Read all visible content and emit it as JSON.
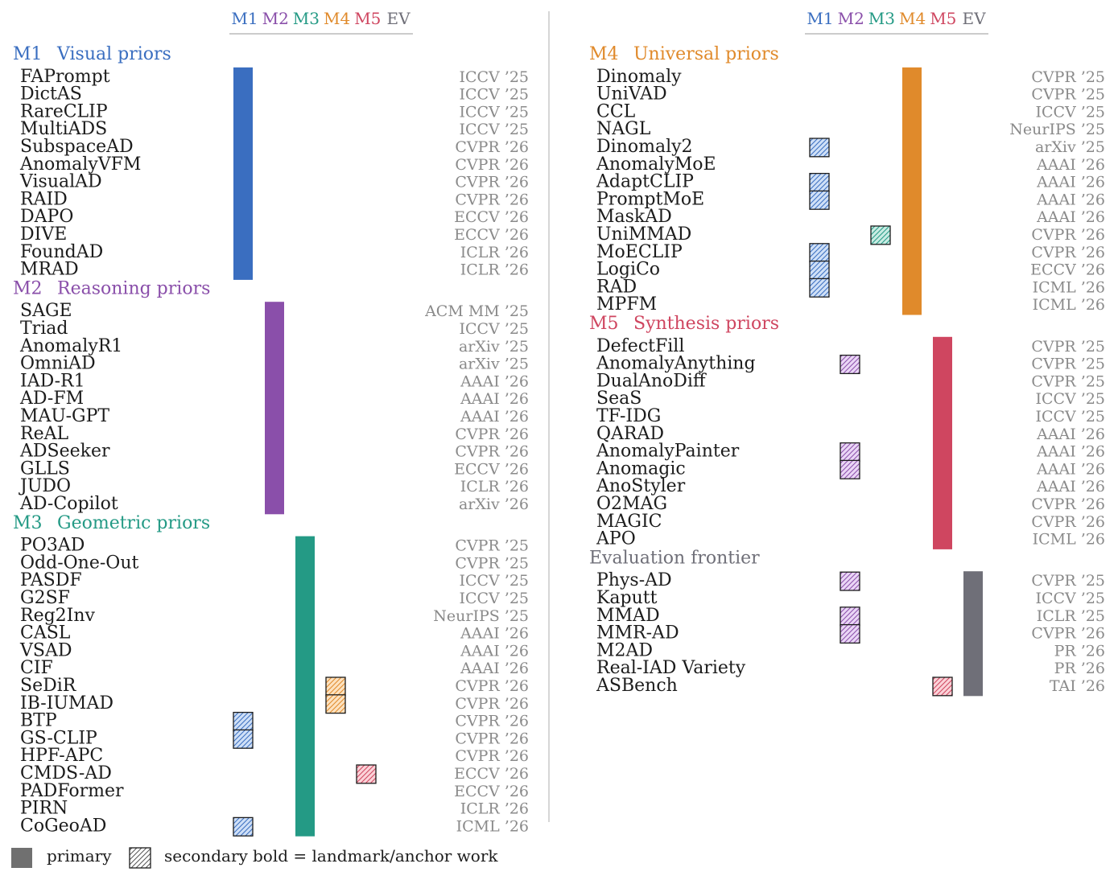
{
  "colors": {
    "M1": "#3a6ec0",
    "M2": "#8a4faa",
    "M3": "#249a85",
    "M4": "#e08a2b",
    "M5": "#cf4660",
    "EV": "#6f6f78",
    "hatch_fill": {
      "M1": "#cfe0f7",
      "M2": "#ead6f6",
      "M3": "#c9ece3",
      "M4": "#fde2c0",
      "M5": "#fbd2d8"
    },
    "venue": "#8a8a8a",
    "divider": "#c8c8c8"
  },
  "header_cols": [
    "M1",
    "M2",
    "M3",
    "M4",
    "M5",
    "EV"
  ],
  "columns": [
    {
      "sections": [
        {
          "code": "M1",
          "title": "Visual priors",
          "items": [
            {
              "name": "FAPrompt",
              "venue": "ICCV ’25",
              "secondary": []
            },
            {
              "name": "DictAS",
              "venue": "ICCV ’25",
              "secondary": []
            },
            {
              "name": "RareCLIP",
              "venue": "ICCV ’25",
              "secondary": []
            },
            {
              "name": "MultiADS",
              "venue": "ICCV ’25",
              "secondary": []
            },
            {
              "name": "SubspaceAD",
              "venue": "CVPR ’26",
              "secondary": []
            },
            {
              "name": "AnomalyVFM",
              "venue": "CVPR ’26",
              "secondary": []
            },
            {
              "name": "VisualAD",
              "venue": "CVPR ’26",
              "secondary": []
            },
            {
              "name": "RAID",
              "venue": "CVPR ’26",
              "secondary": []
            },
            {
              "name": "DAPO",
              "venue": "ECCV ’26",
              "secondary": []
            },
            {
              "name": "DIVE",
              "venue": "ECCV ’26",
              "secondary": []
            },
            {
              "name": "FoundAD",
              "venue": "ICLR ’26",
              "secondary": []
            },
            {
              "name": "MRAD",
              "venue": "ICLR ’26",
              "secondary": []
            }
          ]
        },
        {
          "code": "M2",
          "title": "Reasoning priors",
          "items": [
            {
              "name": "SAGE",
              "venue": "ACM MM ’25",
              "secondary": []
            },
            {
              "name": "Triad",
              "venue": "ICCV ’25",
              "secondary": []
            },
            {
              "name": "AnomalyR1",
              "venue": "arXiv ’25",
              "secondary": []
            },
            {
              "name": "OmniAD",
              "venue": "arXiv ’25",
              "secondary": []
            },
            {
              "name": "IAD-R1",
              "venue": "AAAI ’26",
              "secondary": []
            },
            {
              "name": "AD-FM",
              "venue": "AAAI ’26",
              "secondary": []
            },
            {
              "name": "MAU-GPT",
              "venue": "AAAI ’26",
              "secondary": []
            },
            {
              "name": "ReAL",
              "venue": "CVPR ’26",
              "secondary": []
            },
            {
              "name": "ADSeeker",
              "venue": "CVPR ’26",
              "secondary": []
            },
            {
              "name": "GLLS",
              "venue": "ECCV ’26",
              "secondary": []
            },
            {
              "name": "JUDO",
              "venue": "ICLR ’26",
              "secondary": []
            },
            {
              "name": "AD-Copilot",
              "venue": "arXiv ’26",
              "secondary": []
            }
          ]
        },
        {
          "code": "M3",
          "title": "Geometric priors",
          "items": [
            {
              "name": "PO3AD",
              "venue": "CVPR ’25",
              "secondary": []
            },
            {
              "name": "Odd-One-Out",
              "venue": "CVPR ’25",
              "secondary": []
            },
            {
              "name": "PASDF",
              "venue": "ICCV ’25",
              "secondary": []
            },
            {
              "name": "G2SF",
              "venue": "ICCV ’25",
              "secondary": []
            },
            {
              "name": "Reg2Inv",
              "venue": "NeurIPS ’25",
              "secondary": []
            },
            {
              "name": "CASL",
              "venue": "AAAI ’26",
              "secondary": []
            },
            {
              "name": "VSAD",
              "venue": "AAAI ’26",
              "secondary": []
            },
            {
              "name": "CIF",
              "venue": "AAAI ’26",
              "secondary": []
            },
            {
              "name": "SeDiR",
              "venue": "CVPR ’26",
              "secondary": [
                "M4"
              ]
            },
            {
              "name": "IB-IUMAD",
              "venue": "CVPR ’26",
              "secondary": [
                "M4"
              ]
            },
            {
              "name": "BTP",
              "venue": "CVPR ’26",
              "secondary": [
                "M1"
              ]
            },
            {
              "name": "GS-CLIP",
              "venue": "CVPR ’26",
              "secondary": [
                "M1"
              ]
            },
            {
              "name": "HPF-APC",
              "venue": "CVPR ’26",
              "secondary": []
            },
            {
              "name": "CMDS-AD",
              "venue": "ECCV ’26",
              "secondary": [
                "M5"
              ]
            },
            {
              "name": "PADFormer",
              "venue": "ECCV ’26",
              "secondary": []
            },
            {
              "name": "PIRN",
              "venue": "ICLR ’26",
              "secondary": []
            },
            {
              "name": "CoGeoAD",
              "venue": "ICML ’26",
              "secondary": [
                "M1"
              ]
            }
          ]
        }
      ]
    },
    {
      "sections": [
        {
          "code": "M4",
          "title": "Universal priors",
          "items": [
            {
              "name": "Dinomaly",
              "venue": "CVPR ’25",
              "secondary": []
            },
            {
              "name": "UniVAD",
              "venue": "CVPR ’25",
              "secondary": []
            },
            {
              "name": "CCL",
              "venue": "ICCV ’25",
              "secondary": []
            },
            {
              "name": "NAGL",
              "venue": "NeurIPS ’25",
              "secondary": []
            },
            {
              "name": "Dinomaly2",
              "venue": "arXiv ’25",
              "secondary": [
                "M1"
              ]
            },
            {
              "name": "AnomalyMoE",
              "venue": "AAAI ’26",
              "secondary": []
            },
            {
              "name": "AdaptCLIP",
              "venue": "AAAI ’26",
              "secondary": [
                "M1"
              ]
            },
            {
              "name": "PromptMoE",
              "venue": "AAAI ’26",
              "secondary": [
                "M1"
              ]
            },
            {
              "name": "MaskAD",
              "venue": "AAAI ’26",
              "secondary": []
            },
            {
              "name": "UniMMAD",
              "venue": "CVPR ’26",
              "secondary": [
                "M3"
              ]
            },
            {
              "name": "MoECLIP",
              "venue": "CVPR ’26",
              "secondary": [
                "M1"
              ]
            },
            {
              "name": "LogiCo",
              "venue": "ECCV ’26",
              "secondary": [
                "M1"
              ]
            },
            {
              "name": "RAD",
              "venue": "ICML ’26",
              "secondary": [
                "M1"
              ]
            },
            {
              "name": "MPFM",
              "venue": "ICML ’26",
              "secondary": []
            }
          ]
        },
        {
          "code": "M5",
          "title": "Synthesis priors",
          "items": [
            {
              "name": "DefectFill",
              "venue": "CVPR ’25",
              "secondary": []
            },
            {
              "name": "AnomalyAnything",
              "venue": "CVPR ’25",
              "secondary": [
                "M2"
              ]
            },
            {
              "name": "DualAnoDiff",
              "venue": "CVPR ’25",
              "secondary": []
            },
            {
              "name": "SeaS",
              "venue": "ICCV ’25",
              "secondary": []
            },
            {
              "name": "TF-IDG",
              "venue": "ICCV ’25",
              "secondary": []
            },
            {
              "name": "QARAD",
              "venue": "AAAI ’26",
              "secondary": []
            },
            {
              "name": "AnomalyPainter",
              "venue": "AAAI ’26",
              "secondary": [
                "M2"
              ]
            },
            {
              "name": "Anomagic",
              "venue": "AAAI ’26",
              "secondary": [
                "M2"
              ]
            },
            {
              "name": "AnoStyler",
              "venue": "AAAI ’26",
              "secondary": []
            },
            {
              "name": "O2MAG",
              "venue": "CVPR ’26",
              "secondary": []
            },
            {
              "name": "MAGIC",
              "venue": "CVPR ’26",
              "secondary": []
            },
            {
              "name": "APO",
              "venue": "ICML ’26",
              "secondary": []
            }
          ]
        },
        {
          "code": "EV",
          "title": "Evaluation frontier",
          "items": [
            {
              "name": "Phys-AD",
              "venue": "CVPR ’25",
              "secondary": [
                "M2"
              ]
            },
            {
              "name": "Kaputt",
              "venue": "ICCV ’25",
              "secondary": []
            },
            {
              "name": "MMAD",
              "venue": "ICLR ’25",
              "secondary": [
                "M2"
              ]
            },
            {
              "name": "MMR-AD",
              "venue": "CVPR ’26",
              "secondary": [
                "M2"
              ]
            },
            {
              "name": "M2AD",
              "venue": "PR ’26",
              "secondary": []
            },
            {
              "name": "Real-IAD Variety",
              "venue": "PR ’26",
              "secondary": []
            },
            {
              "name": "ASBench",
              "venue": "TAI ’26",
              "secondary": [
                "M5"
              ]
            }
          ]
        }
      ]
    }
  ],
  "legend": {
    "primary_label": "primary",
    "secondary_label": "secondary",
    "bold_note": "bold = landmark/anchor work"
  }
}
